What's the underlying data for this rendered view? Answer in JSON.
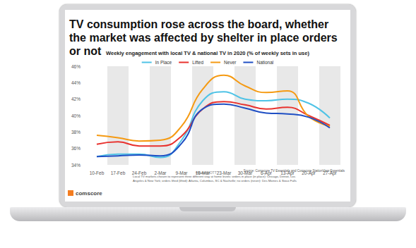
{
  "chart_data": {
    "type": "line",
    "title": "TV consumption rose across the board, whether the market was affected by shelter in place orders or not",
    "subtitle": "Weekly engagement with local TV & national TV in 2020 (% of weekly sets in use)",
    "categories": [
      "10-Feb",
      "17-Feb",
      "24-Feb",
      "2-Mar",
      "9-Mar",
      "16-Mar",
      "23-Mar",
      "30-Mar",
      "6-Apr",
      "13-Apr",
      "20-Apr",
      "27-Apr"
    ],
    "series": [
      {
        "name": "In Place",
        "color": "#4fc3e6",
        "values": [
          35.0,
          35.3,
          35.3,
          34.9,
          37.0,
          41.8,
          42.9,
          42.0,
          41.8,
          42.0,
          41.5,
          39.7
        ]
      },
      {
        "name": "Lifted",
        "color": "#e8322e",
        "values": [
          36.5,
          36.8,
          36.3,
          36.3,
          37.5,
          40.8,
          41.7,
          41.3,
          40.8,
          41.0,
          40.0,
          38.8
        ]
      },
      {
        "name": "Never",
        "color": "#f59a12",
        "values": [
          37.6,
          37.3,
          36.9,
          37.0,
          38.7,
          43.2,
          44.9,
          43.6,
          42.8,
          43.0,
          39.9,
          38.7
        ]
      },
      {
        "name": "National",
        "color": "#1f4fc4",
        "values": [
          35.0,
          35.1,
          35.2,
          35.1,
          36.6,
          40.8,
          41.4,
          40.9,
          40.3,
          40.2,
          39.8,
          38.5
        ]
      }
    ],
    "ylim": [
      34,
      46
    ],
    "yticks": [
      {
        "value": 34,
        "label": "34%"
      },
      {
        "value": 36,
        "label": "36%"
      },
      {
        "value": 38,
        "label": "38%"
      },
      {
        "value": 40,
        "label": "40%"
      },
      {
        "value": 42,
        "label": "42%"
      },
      {
        "value": 44,
        "label": "44%"
      },
      {
        "value": 46,
        "label": "46%"
      }
    ],
    "grid": false,
    "legend": "top",
    "source": "Source: Comscore TV Essentials and Comscore StationView Essentials",
    "note": "Local TV markets chosen to represent three different stay at home levels: orders in place (in place): Chicago, Detroit, Los Angeles & New York; orders lifted (lifted): Atlanta, Columbus, SC & Nashville; no orders (never): Des Moines & Sioux Falls",
    "hashtag": "#StateOfOTT",
    "brand": "comscore"
  }
}
